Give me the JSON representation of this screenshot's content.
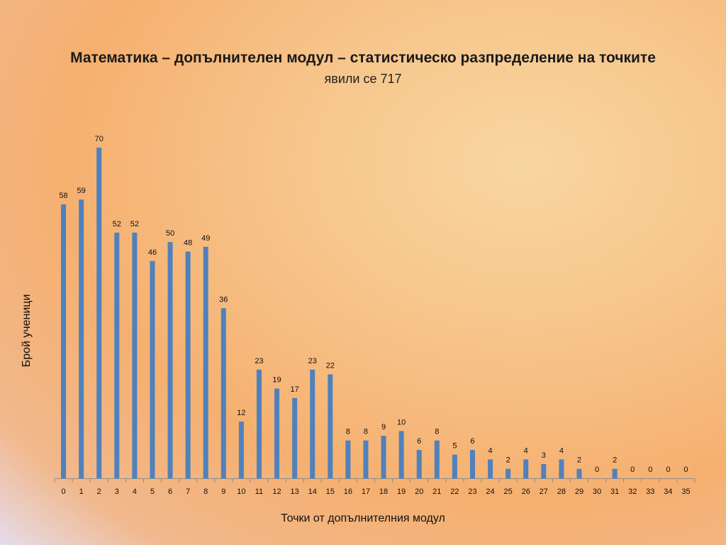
{
  "chart_data": {
    "type": "bar",
    "title": "Математика – допълнителен модул – статистическо разпределение на точките",
    "subtitle": "явили се 717",
    "xlabel": "Точки от допълнителния модул",
    "ylabel": "Брой ученици",
    "categories": [
      "0",
      "1",
      "2",
      "3",
      "4",
      "5",
      "6",
      "7",
      "8",
      "9",
      "10",
      "11",
      "12",
      "13",
      "14",
      "15",
      "16",
      "17",
      "18",
      "19",
      "20",
      "21",
      "22",
      "23",
      "24",
      "25",
      "26",
      "27",
      "28",
      "29",
      "30",
      "31",
      "32",
      "33",
      "34",
      "35"
    ],
    "values": [
      58,
      59,
      70,
      52,
      52,
      46,
      50,
      48,
      49,
      36,
      12,
      23,
      19,
      17,
      23,
      22,
      8,
      8,
      9,
      10,
      6,
      8,
      5,
      6,
      4,
      2,
      4,
      3,
      4,
      2,
      0,
      2,
      0,
      0,
      0,
      0
    ],
    "ylim": [
      0,
      70
    ],
    "grid": false,
    "legend": "none",
    "bar_color": "#4f81bd"
  }
}
